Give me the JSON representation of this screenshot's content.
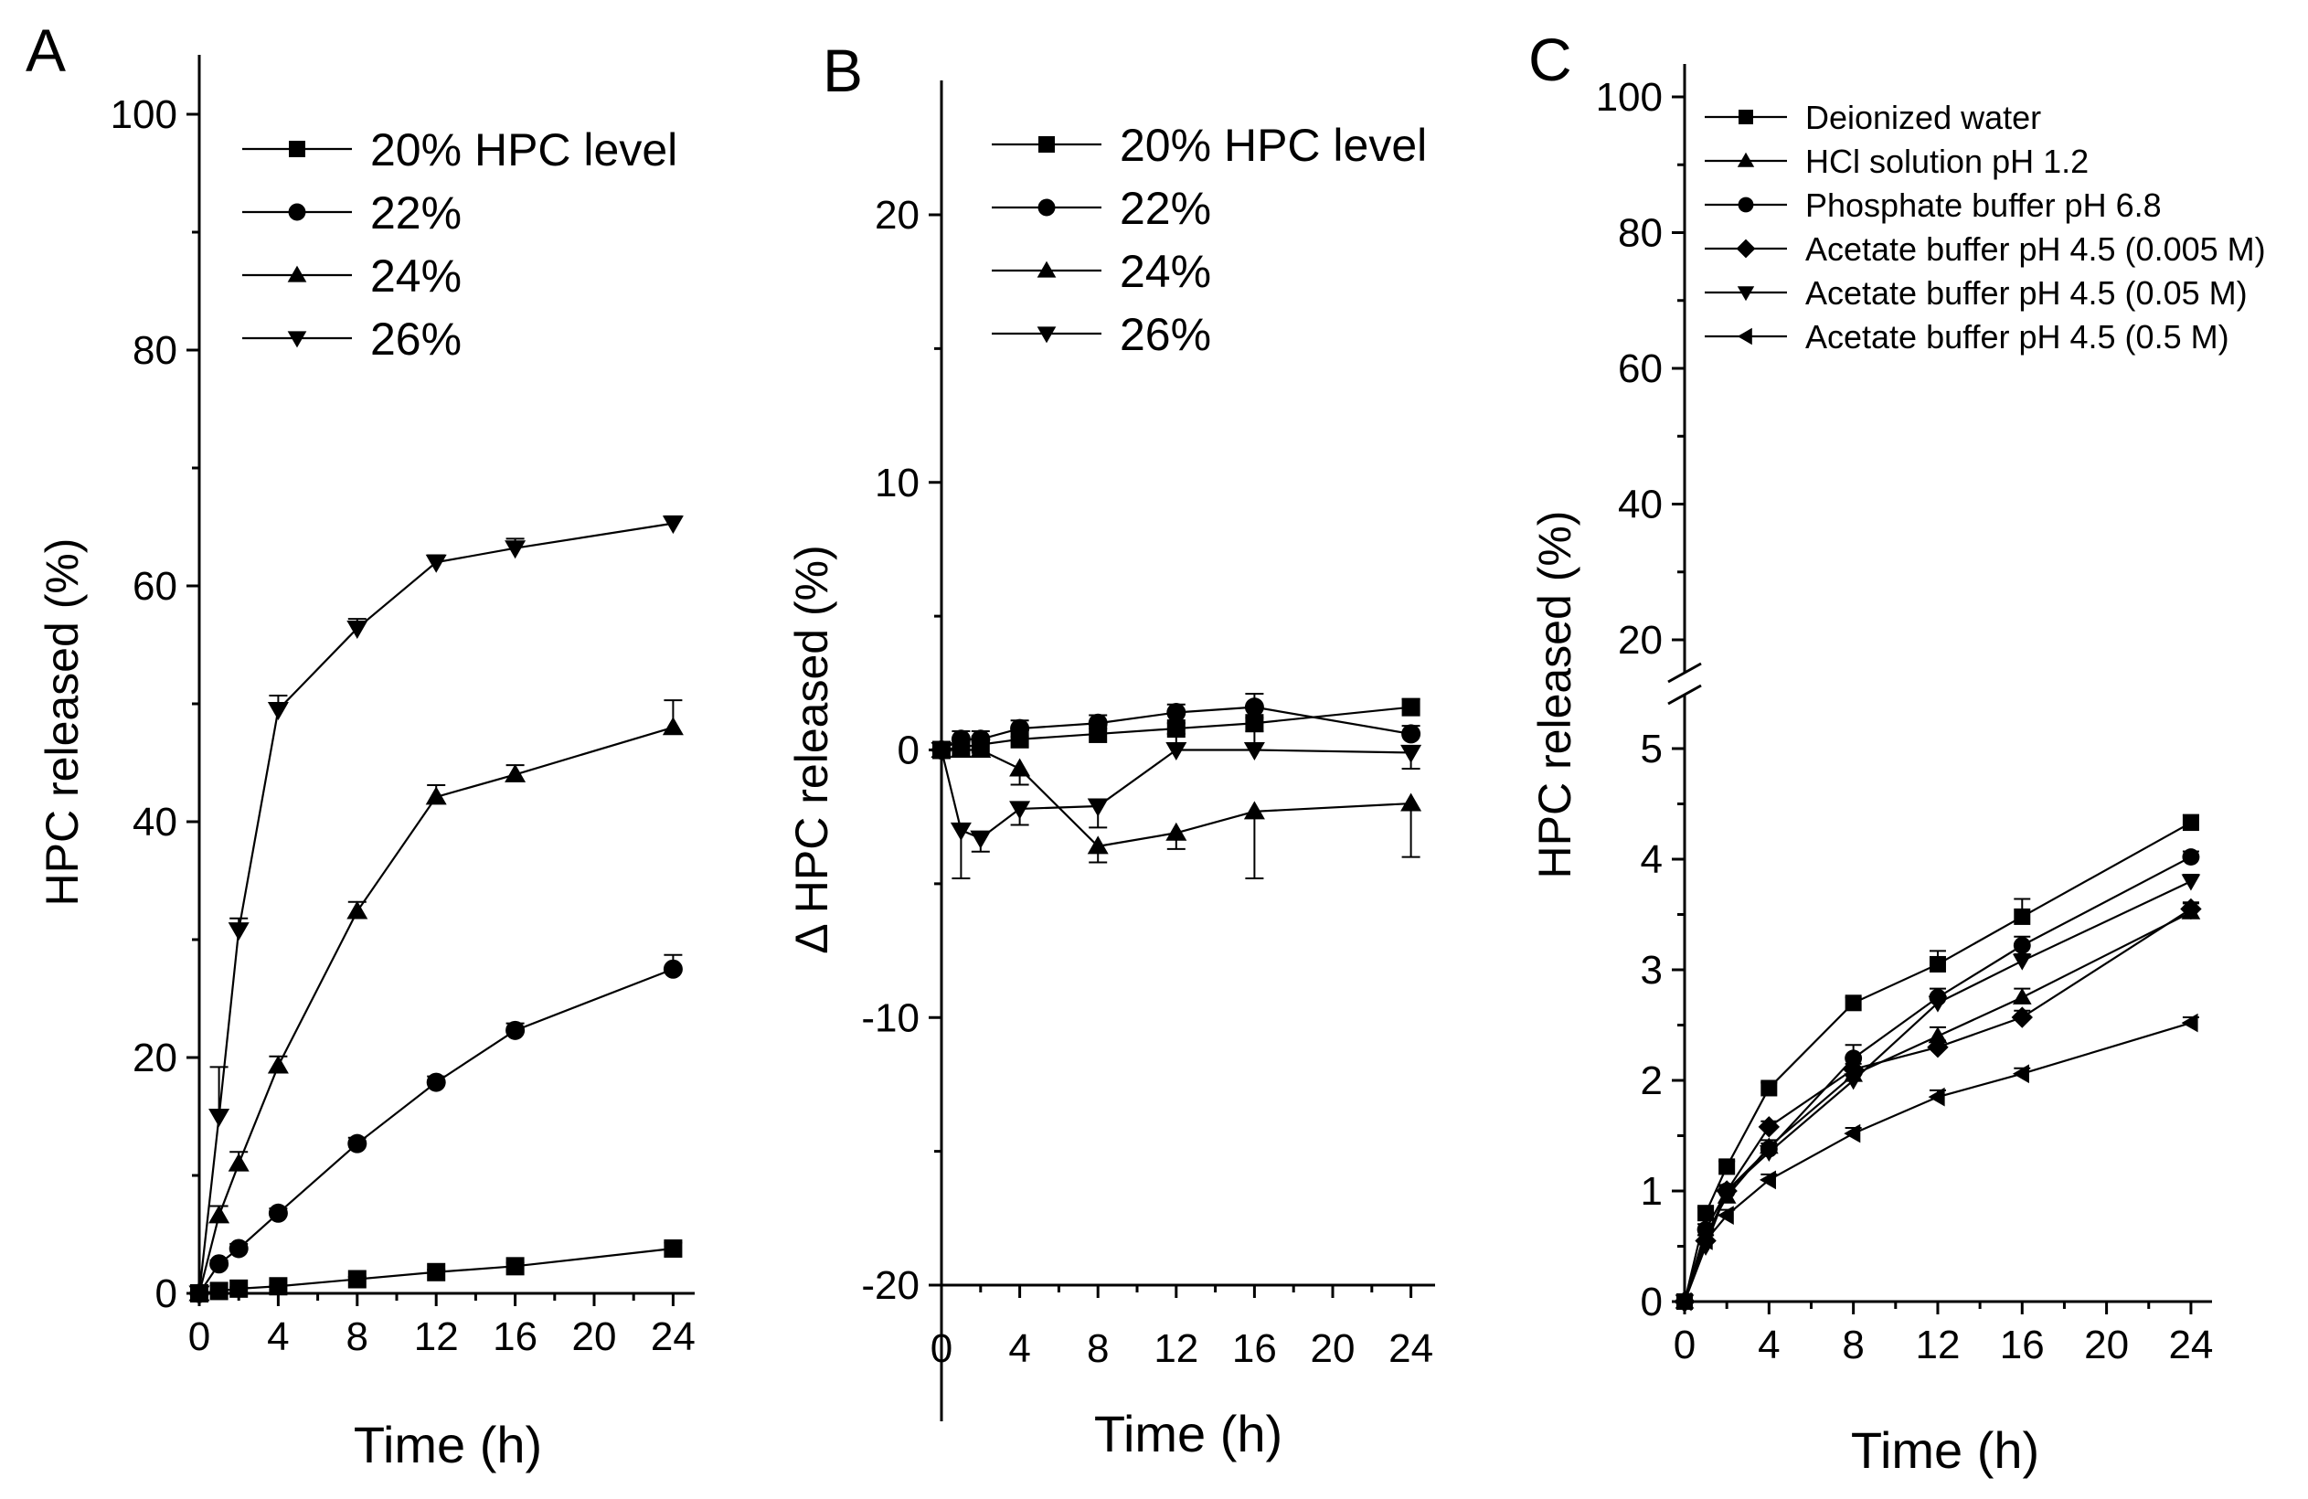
{
  "chart_data": [
    {
      "panel": "A",
      "type": "line",
      "xlabel": "Time (h)",
      "ylabel": "HPC released (%)",
      "xlim": [
        0,
        25
      ],
      "ylim": [
        0,
        105
      ],
      "xticks": [
        0,
        4,
        8,
        12,
        16,
        20,
        24
      ],
      "yticks": [
        0,
        20,
        40,
        60,
        80,
        100
      ],
      "legend_position": "top-right",
      "series": [
        {
          "name": "20% HPC level",
          "marker": "square",
          "x": [
            0,
            1,
            2,
            4,
            8,
            12,
            16,
            24
          ],
          "y": [
            0,
            0.2,
            0.4,
            0.6,
            1.2,
            1.8,
            2.3,
            3.8
          ],
          "err": [
            0,
            0.1,
            0.1,
            0.1,
            0.2,
            0.2,
            0.3,
            0.5
          ]
        },
        {
          "name": "22%",
          "marker": "circle",
          "x": [
            0,
            1,
            2,
            4,
            8,
            12,
            16,
            24
          ],
          "y": [
            0,
            2.5,
            3.8,
            6.8,
            12.7,
            17.9,
            22.3,
            27.5
          ],
          "err": [
            0,
            0.3,
            0.4,
            0.4,
            0.5,
            0.5,
            0.6,
            1.2
          ]
        },
        {
          "name": "24%",
          "marker": "triangle-up",
          "x": [
            0,
            1,
            2,
            4,
            8,
            12,
            16,
            24
          ],
          "y": [
            0,
            6.6,
            11.0,
            19.3,
            32.4,
            42.1,
            44.0,
            48.0
          ],
          "err": [
            0,
            0.8,
            1.0,
            0.8,
            0.8,
            1.0,
            0.8,
            2.3
          ]
        },
        {
          "name": "26%",
          "marker": "triangle-down",
          "x": [
            0,
            1,
            2,
            4,
            8,
            12,
            16,
            24
          ],
          "y": [
            0,
            15.0,
            30.8,
            49.5,
            56.4,
            62.0,
            63.2,
            65.3
          ],
          "err": [
            0,
            4.2,
            1.0,
            1.2,
            0.8,
            0.6,
            0.8,
            0.6
          ]
        }
      ]
    },
    {
      "panel": "B",
      "type": "line",
      "xlabel": "Time (h)",
      "ylabel": "Δ HPC released (%)",
      "xlim": [
        0,
        25
      ],
      "ylim": [
        -25,
        25
      ],
      "xticks": [
        0,
        4,
        8,
        12,
        16,
        20,
        24
      ],
      "yticks": [
        -20,
        -10,
        0,
        10,
        20
      ],
      "legend_position": "top-right",
      "series": [
        {
          "name": "20% HPC level",
          "marker": "square",
          "x": [
            0,
            1,
            2,
            4,
            8,
            12,
            16,
            24
          ],
          "y": [
            0,
            0.1,
            0.2,
            0.4,
            0.6,
            0.8,
            1.0,
            1.6
          ],
          "err": [
            0,
            0.1,
            0.1,
            0.1,
            0.2,
            0.2,
            0.2,
            0.3
          ]
        },
        {
          "name": "22%",
          "marker": "circle",
          "x": [
            0,
            1,
            2,
            4,
            8,
            12,
            16,
            24
          ],
          "y": [
            0,
            0.4,
            0.4,
            0.8,
            1.0,
            1.4,
            1.6,
            0.6
          ],
          "err": [
            0,
            0.3,
            0.3,
            0.3,
            0.3,
            0.3,
            0.5,
            0.3
          ]
        },
        {
          "name": "24%",
          "marker": "triangle-up",
          "x": [
            0,
            1,
            2,
            4,
            8,
            12,
            16,
            24
          ],
          "y": [
            0,
            0,
            0,
            -0.7,
            -3.6,
            -3.1,
            -2.3,
            -2.0
          ],
          "err": [
            0,
            0.3,
            0.4,
            0.6,
            0.6,
            0.6,
            2.5,
            2.0
          ]
        },
        {
          "name": "26%",
          "marker": "triangle-down",
          "x": [
            0,
            1,
            2,
            4,
            8,
            12,
            16,
            24
          ],
          "y": [
            0,
            -3.0,
            -3.3,
            -2.2,
            -2.1,
            0,
            0,
            -0.1
          ],
          "err": [
            0,
            1.8,
            0.5,
            0.6,
            0.8,
            0.6,
            0.7,
            0.6
          ]
        }
      ]
    },
    {
      "panel": "C",
      "type": "line",
      "xlabel": "Time (h)",
      "ylabel": "HPC released (%)",
      "xlim": [
        0,
        25
      ],
      "ylim": [
        0,
        100
      ],
      "axis_break": {
        "lower_range": [
          0,
          5.5
        ],
        "upper_range": [
          15,
          100
        ]
      },
      "xticks": [
        0,
        4,
        8,
        12,
        16,
        20,
        24
      ],
      "yticks_lower": [
        0,
        1,
        2,
        3,
        4,
        5
      ],
      "yticks_upper": [
        20,
        40,
        60,
        80,
        100
      ],
      "legend_position": "top",
      "series": [
        {
          "name": "Deionized water",
          "marker": "square",
          "x": [
            0,
            1,
            2,
            4,
            8,
            12,
            16,
            24
          ],
          "y": [
            0,
            0.8,
            1.22,
            1.93,
            2.7,
            3.05,
            3.48,
            4.33
          ],
          "err": [
            0,
            0.05,
            0.05,
            0.05,
            0.05,
            0.12,
            0.16,
            0.07
          ]
        },
        {
          "name": "HCl solution pH 1.2",
          "marker": "triangle-up",
          "x": [
            0,
            1,
            2,
            4,
            8,
            12,
            16,
            24
          ],
          "y": [
            0,
            0.6,
            0.95,
            1.4,
            2.05,
            2.4,
            2.75,
            3.52
          ],
          "err": [
            0,
            0.05,
            0.05,
            0.06,
            0.07,
            0.08,
            0.08,
            0.08
          ]
        },
        {
          "name": "Phosphate buffer pH 6.8",
          "marker": "circle",
          "x": [
            0,
            1,
            2,
            4,
            8,
            12,
            16,
            24
          ],
          "y": [
            0,
            0.65,
            1.0,
            1.38,
            2.2,
            2.75,
            3.22,
            4.02
          ],
          "err": [
            0,
            0.05,
            0.05,
            0.05,
            0.12,
            0.08,
            0.08,
            0.05
          ]
        },
        {
          "name": "Acetate buffer pH 4.5 (0.005 M)",
          "marker": "diamond",
          "x": [
            0,
            1,
            2,
            4,
            8,
            12,
            16,
            24
          ],
          "y": [
            0,
            0.55,
            1.0,
            1.58,
            2.1,
            2.3,
            2.57,
            3.55
          ],
          "err": [
            0,
            0.05,
            0.05,
            0.05,
            0.05,
            0.06,
            0.06,
            0.06
          ]
        },
        {
          "name": "Acetate buffer pH 4.5 (0.05 M)",
          "marker": "triangle-down",
          "x": [
            0,
            1,
            2,
            4,
            8,
            12,
            16,
            24
          ],
          "y": [
            0,
            0.5,
            1.0,
            1.35,
            2.0,
            2.7,
            3.08,
            3.8
          ],
          "err": [
            0,
            0.05,
            0.05,
            0.05,
            0.05,
            0.06,
            0.06,
            0.06
          ]
        },
        {
          "name": "Acetate buffer pH 4.5 (0.5 M)",
          "marker": "triangle-left",
          "x": [
            0,
            1,
            2,
            4,
            8,
            12,
            16,
            24
          ],
          "y": [
            0,
            0.55,
            0.78,
            1.1,
            1.52,
            1.85,
            2.06,
            2.52
          ],
          "err": [
            0,
            0.05,
            0.05,
            0.05,
            0.05,
            0.06,
            0.05,
            0.05
          ]
        }
      ]
    }
  ]
}
